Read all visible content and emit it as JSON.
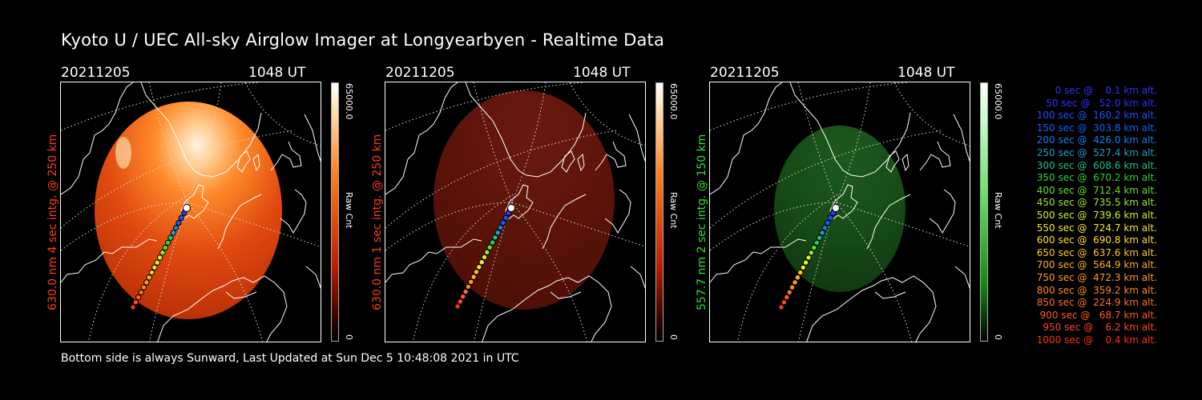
{
  "title": "Kyoto U / UEC All-sky Airglow Imager at Longyearbyen - Realtime Data",
  "footer": "Bottom side is always Sunward, Last Updated at Sun Dec  5 10:48:08 2021 in UTC",
  "panels": [
    {
      "date": "20211205",
      "time": "1048 UT",
      "ylabel": "630.0 nm 4 sec intg. @ 250 km",
      "ylabel_color": "#ff3b1a",
      "cbar_max": "65000.0",
      "cbar_min": "0",
      "cbar_unit": "Raw Cnt",
      "tint": "red",
      "brightness": "bright"
    },
    {
      "date": "20211205",
      "time": "1048 UT",
      "ylabel": "630.0 nm 1 sec intg. @ 250 km",
      "ylabel_color": "#ff3b1a",
      "cbar_max": "65000.0",
      "cbar_min": "0",
      "cbar_unit": "Raw Cnt",
      "tint": "red",
      "brightness": "dim"
    },
    {
      "date": "20211205",
      "time": "1048 UT",
      "ylabel": "557.7 nm 2 sec intg. @ 150 km",
      "ylabel_color": "#33dd33",
      "cbar_max": "65000.0",
      "cbar_min": "0",
      "cbar_unit": "Raw Cnt",
      "tint": "green",
      "brightness": "dim"
    }
  ],
  "legend": [
    {
      "text": "   0 sec @    0.1 km alt.",
      "color": "#3030ff"
    },
    {
      "text": "  50 sec @   52.0 km alt.",
      "color": "#3030ff"
    },
    {
      "text": " 100 sec @  160.2 km alt.",
      "color": "#2050ff"
    },
    {
      "text": " 150 sec @  303.8 km alt.",
      "color": "#1060ff"
    },
    {
      "text": " 200 sec @  426.0 km alt.",
      "color": "#1080ee"
    },
    {
      "text": " 250 sec @  527.4 km alt.",
      "color": "#20a0c0"
    },
    {
      "text": " 300 sec @  608.6 km alt.",
      "color": "#20c080"
    },
    {
      "text": " 350 sec @  670.2 km alt.",
      "color": "#30d040"
    },
    {
      "text": " 400 sec @  712.4 km alt.",
      "color": "#60e020"
    },
    {
      "text": " 450 sec @  735.5 km alt.",
      "color": "#a0e820"
    },
    {
      "text": " 500 sec @  739.6 km alt.",
      "color": "#d0f020"
    },
    {
      "text": " 550 sec @  724.7 km alt.",
      "color": "#f0f020"
    },
    {
      "text": " 600 sec @  690.8 km alt.",
      "color": "#ffe020"
    },
    {
      "text": " 650 sec @  637.6 km alt.",
      "color": "#ffc820"
    },
    {
      "text": " 700 sec @  564.9 km alt.",
      "color": "#ffb020"
    },
    {
      "text": " 750 sec @  472.3 km alt.",
      "color": "#ff9c20"
    },
    {
      "text": " 800 sec @  359.2 km alt.",
      "color": "#ff8820"
    },
    {
      "text": " 850 sec @  224.9 km alt.",
      "color": "#ff7020"
    },
    {
      "text": " 900 sec @   68.7 km alt.",
      "color": "#ff5a20"
    },
    {
      "text": " 950 sec @    6.2 km alt.",
      "color": "#ff4820"
    },
    {
      "text": "1000 sec @    0.4 km alt.",
      "color": "#ff3010"
    }
  ]
}
